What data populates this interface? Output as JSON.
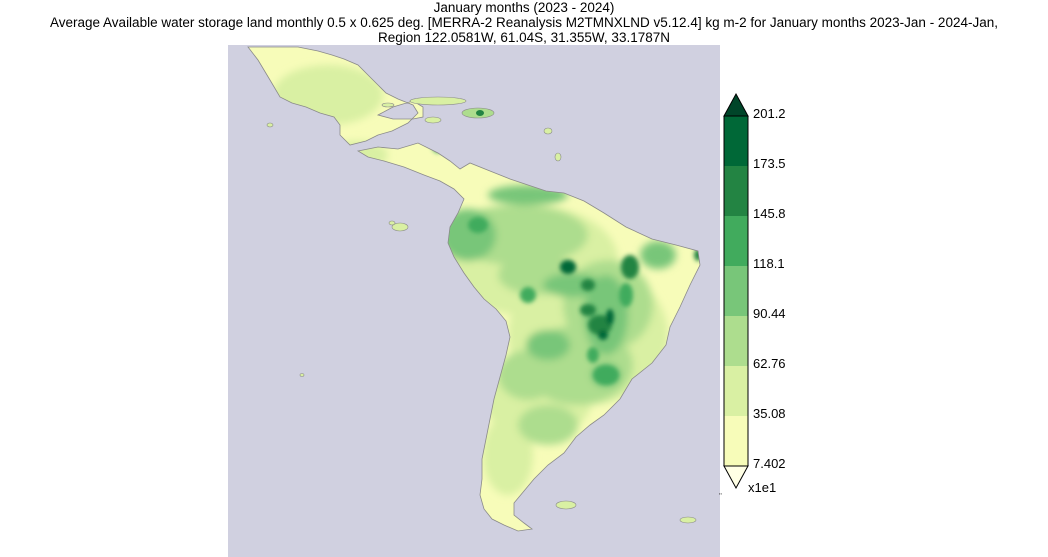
{
  "title": {
    "line1": "January months (2023 - 2024)",
    "line2": "Average Available water storage land monthly 0.5 x 0.625 deg. [MERRA-2 Reanalysis M2TMNXLND v5.12.4] kg m-2 for January months 2023-Jan - 2024-Jan,",
    "line3": "Region 122.0581W, 61.04S, 31.355W, 33.1787N"
  },
  "colors": {
    "ocean": "#d0d0e0",
    "coastline": "#8a8a8a"
  },
  "colorbar": {
    "labels": [
      "201.2",
      "173.5",
      "145.8",
      "118.1",
      "90.44",
      "62.76",
      "35.08",
      "7.402"
    ],
    "scale_label": "x1e1",
    "colors": [
      "#006837",
      "#238443",
      "#41ab5d",
      "#78c679",
      "#addd8e",
      "#d9f0a3",
      "#f7fcb9"
    ],
    "over_color": "#004529",
    "under_color": "#ffffe5"
  },
  "stray_mark": "\""
}
